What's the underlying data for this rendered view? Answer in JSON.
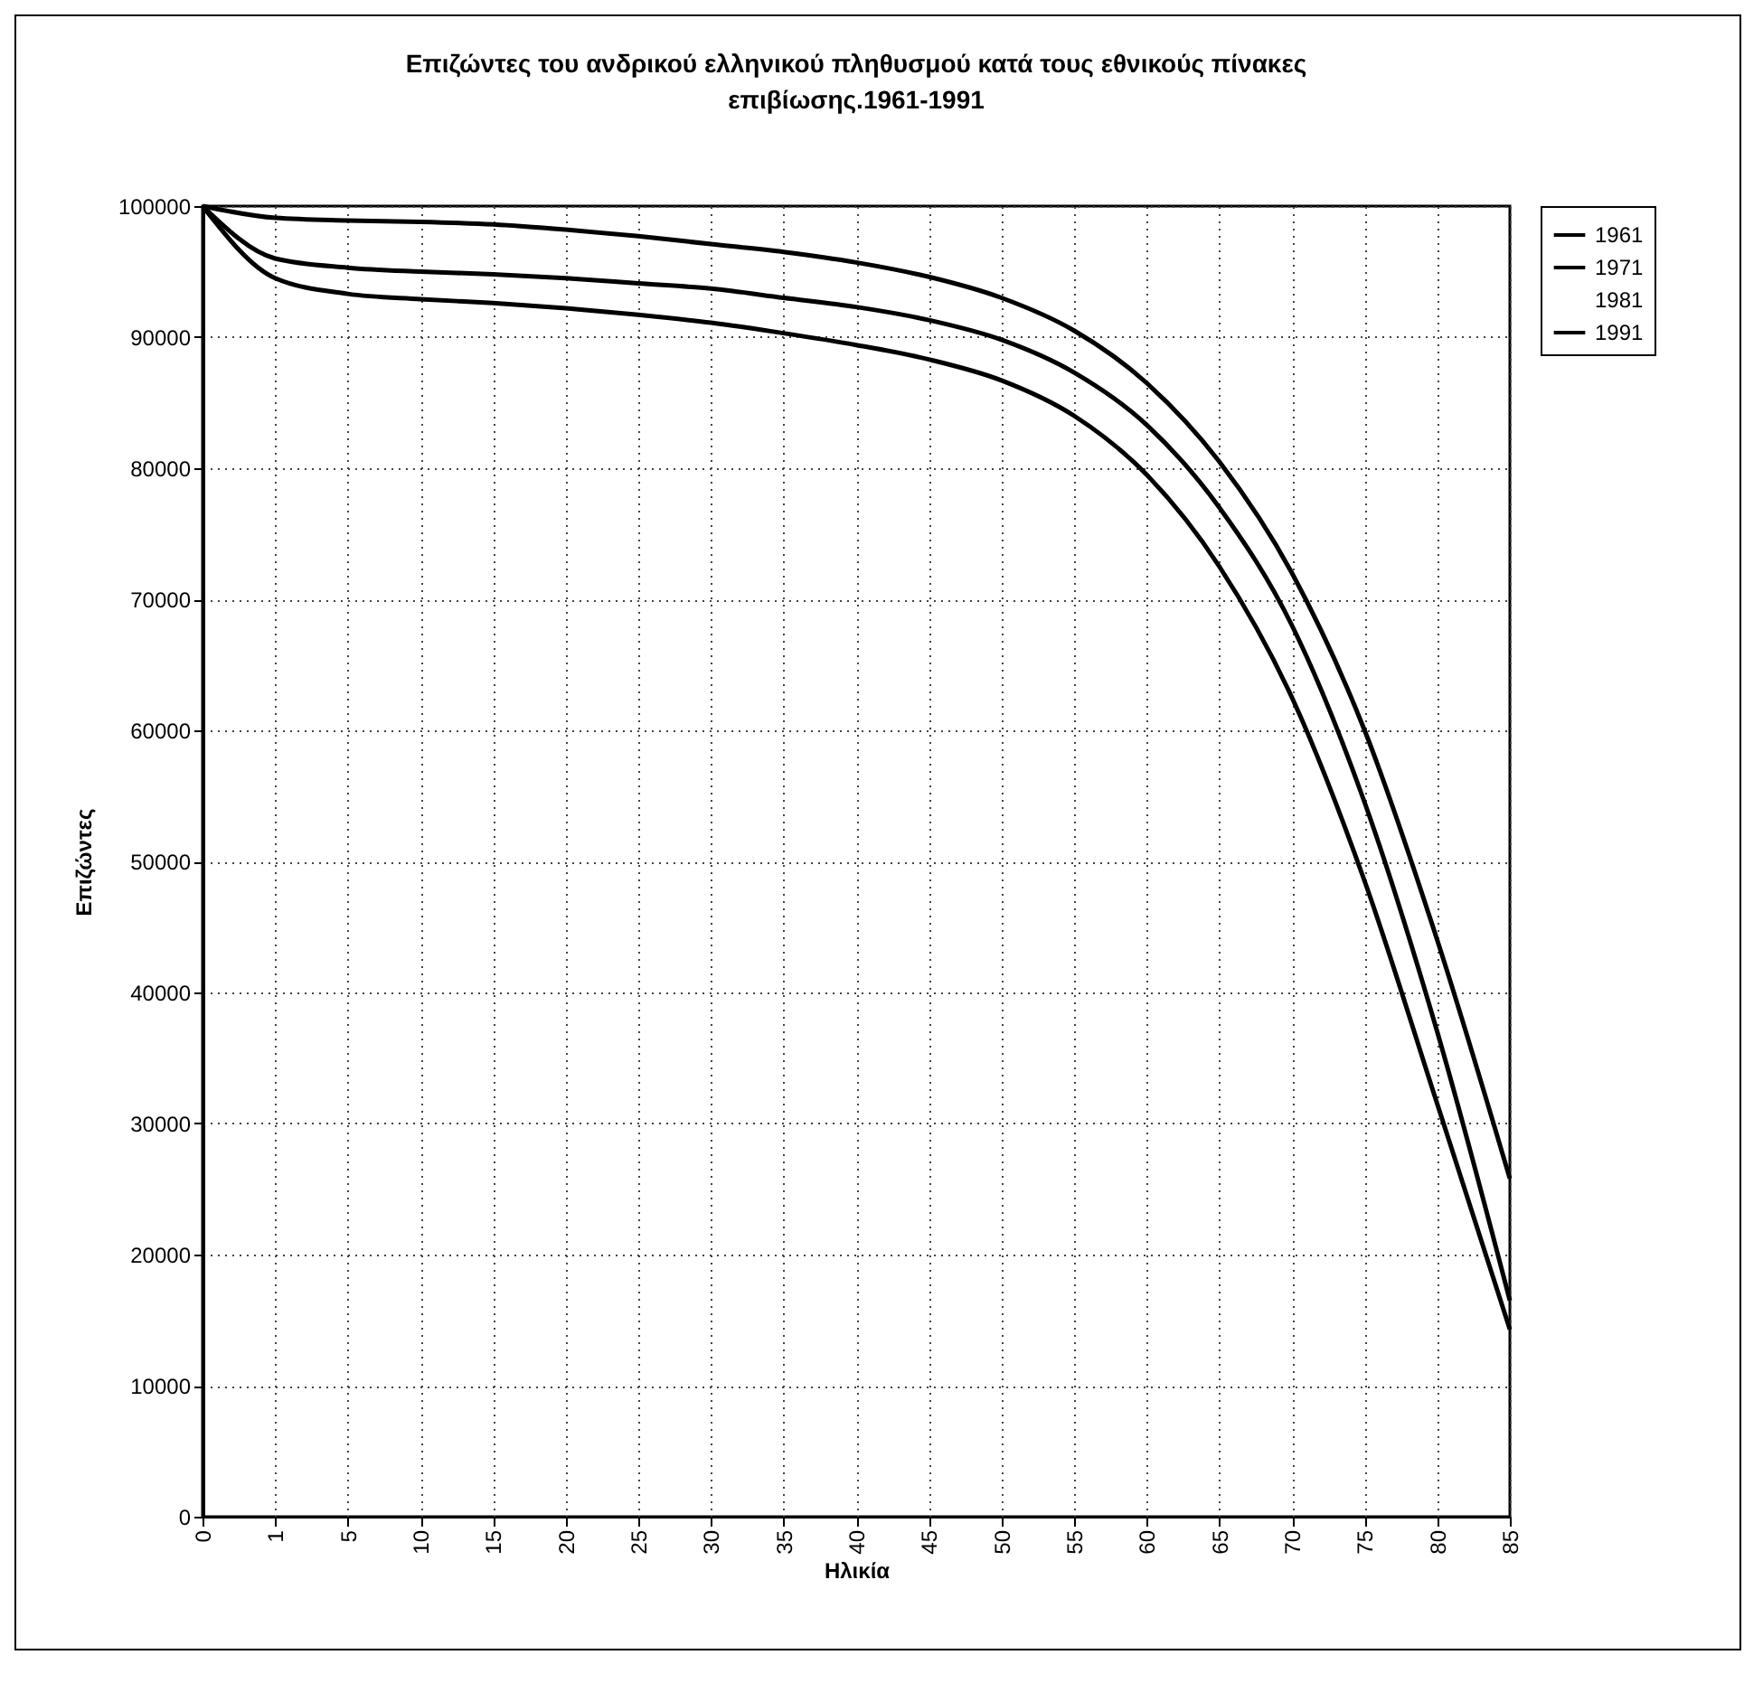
{
  "chart_data": {
    "type": "line",
    "title": "Επιζώντες του ανδρικού ελληνικού πληθυσμού κατά τους εθνικούς πίνακες επιβίωσης.1961-1991",
    "xlabel": "Ηλικία",
    "ylabel": "Επιζώντες",
    "categories": [
      "0",
      "1",
      "5",
      "10",
      "15",
      "20",
      "25",
      "30",
      "35",
      "40",
      "45",
      "50",
      "55",
      "60",
      "65",
      "70",
      "75",
      "80",
      "85"
    ],
    "series": [
      {
        "name": "1961",
        "color": "#000000",
        "values": [
          100000,
          94500,
          93300,
          92900,
          92600,
          92200,
          91700,
          91100,
          90300,
          89400,
          88300,
          86700,
          84000,
          79500,
          72500,
          62500,
          48500,
          31500,
          14300
        ]
      },
      {
        "name": "1971",
        "color": "#000000",
        "values": [
          100000,
          96000,
          95300,
          95000,
          94800,
          94500,
          94100,
          93700,
          93000,
          92300,
          91300,
          89800,
          87300,
          83300,
          77000,
          68000,
          54500,
          37000,
          16500
        ]
      },
      {
        "name": "1981",
        "values": [
          null,
          null,
          null,
          null,
          null,
          null,
          null,
          null,
          null,
          null,
          null,
          null,
          null,
          null,
          null,
          null,
          null,
          null,
          null
        ]
      },
      {
        "name": "1991",
        "color": "#000000",
        "values": [
          100000,
          99100,
          98900,
          98800,
          98600,
          98200,
          97700,
          97100,
          96500,
          95700,
          94600,
          93000,
          90500,
          86500,
          80500,
          72000,
          60000,
          44000,
          25800
        ]
      }
    ],
    "ylim": [
      0,
      100000
    ],
    "yticks": [
      0,
      10000,
      20000,
      30000,
      40000,
      50000,
      60000,
      70000,
      80000,
      90000,
      100000
    ],
    "grid": true,
    "legend": "right",
    "line_style": "solid",
    "marker": "none"
  }
}
